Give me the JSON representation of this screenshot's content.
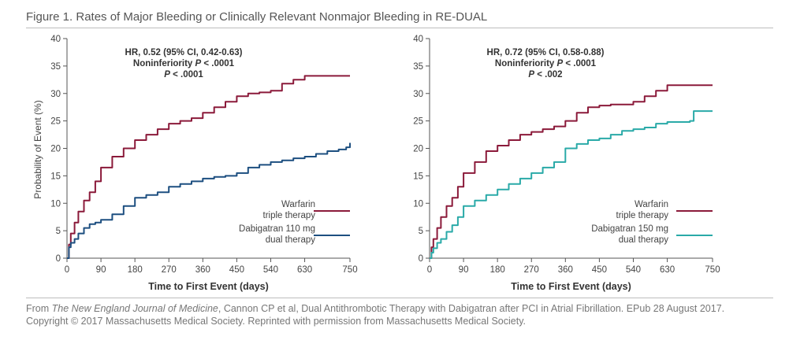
{
  "figure": {
    "title": "Figure 1. Rates of Major Bleeding or Clinically Relevant Nonmajor Bleeding in RE-DUAL",
    "credit_prefix": "From ",
    "credit_journal": "The New England Journal of Medicine",
    "credit_rest": ", Cannon CP et al, Dual Antithrombotic Therapy with Dabigatran after PCI in Atrial Fibrillation. EPub 28 August 2017.",
    "credit_line2": "Copyright © 2017 Massachusetts Medical Society. Reprinted with permission from Massachusetts Medical Society."
  },
  "colors": {
    "warfarin": "#8b1a3a",
    "dabigatran110": "#1d4f80",
    "dabigatran150": "#2aaaa8",
    "axis": "#555555"
  },
  "chart_data": [
    {
      "type": "line",
      "xlabel": "Time to First Event (days)",
      "ylabel": "Probability of Event (%)",
      "xlim": [
        0,
        750
      ],
      "ylim": [
        0,
        40
      ],
      "xticks": [
        0,
        90,
        180,
        270,
        360,
        450,
        540,
        630,
        750
      ],
      "yticks": [
        0,
        5,
        10,
        15,
        20,
        25,
        30,
        35,
        40
      ],
      "grid": false,
      "legend_position": "bottom-right",
      "annotation": {
        "line1": "HR, 0.52 (95% CI, 0.42-0.63)",
        "line2_prefix": "Noninferiority ",
        "line2_p": "P",
        "line2_suffix": " < .0001",
        "line3_p": "P",
        "line3_suffix": " < .0001"
      },
      "series": [
        {
          "name": "Warfarin",
          "name2": "triple therapy",
          "color": "#8b1a3a",
          "x": [
            0,
            5,
            10,
            20,
            30,
            45,
            60,
            75,
            90,
            120,
            150,
            180,
            210,
            240,
            270,
            300,
            330,
            360,
            390,
            420,
            450,
            480,
            510,
            540,
            570,
            600,
            630,
            660,
            690,
            720,
            750
          ],
          "y": [
            0,
            2.5,
            4.5,
            6.5,
            8.5,
            10.5,
            12,
            14,
            16.5,
            18.5,
            20,
            21.5,
            22.5,
            23.5,
            24.5,
            25,
            25.5,
            26.5,
            27.5,
            28.5,
            29.5,
            30,
            30.2,
            30.5,
            31.8,
            32.5,
            33.2,
            33.2,
            33.2,
            33.2,
            33.2
          ]
        },
        {
          "name": "Dabigatran 110 mg",
          "name2": "dual therapy",
          "color": "#1d4f80",
          "x": [
            0,
            5,
            10,
            20,
            30,
            45,
            60,
            75,
            90,
            120,
            150,
            180,
            210,
            240,
            270,
            300,
            330,
            360,
            390,
            420,
            450,
            480,
            510,
            540,
            570,
            600,
            630,
            660,
            690,
            720,
            740,
            750
          ],
          "y": [
            0,
            2,
            2.8,
            3.5,
            4.5,
            5.5,
            6.2,
            6.5,
            7,
            8,
            9.5,
            11,
            11.5,
            12,
            13,
            13.5,
            14,
            14.5,
            14.8,
            15,
            15.5,
            16.5,
            17,
            17.5,
            17.8,
            18.2,
            18.5,
            19,
            19.5,
            19.8,
            20.2,
            21
          ]
        }
      ]
    },
    {
      "type": "line",
      "xlabel": "Time to First Event (days)",
      "ylabel": "",
      "xlim": [
        0,
        750
      ],
      "ylim": [
        0,
        40
      ],
      "xticks": [
        0,
        90,
        180,
        270,
        360,
        450,
        540,
        630,
        750
      ],
      "yticks": [
        0,
        5,
        10,
        15,
        20,
        25,
        30,
        35,
        40
      ],
      "grid": false,
      "legend_position": "bottom-right",
      "annotation": {
        "line1": "HR, 0.72 (95% CI, 0.58-0.88)",
        "line2_prefix": "Noninferiority ",
        "line2_p": "P",
        "line2_suffix": " < .0001",
        "line3_p": "P",
        "line3_suffix": " < .002"
      },
      "series": [
        {
          "name": "Warfarin",
          "name2": "triple therapy",
          "color": "#8b1a3a",
          "x": [
            0,
            5,
            10,
            20,
            30,
            45,
            60,
            75,
            90,
            120,
            150,
            180,
            210,
            240,
            270,
            300,
            330,
            360,
            390,
            420,
            450,
            480,
            510,
            540,
            570,
            600,
            630,
            660,
            690,
            720,
            750
          ],
          "y": [
            0,
            2,
            3.5,
            5.5,
            7.5,
            9.5,
            11,
            13,
            15.5,
            17.5,
            19.5,
            20.5,
            21.5,
            22.5,
            23,
            23.5,
            24,
            25,
            26.5,
            27.5,
            27.8,
            28,
            28,
            28.5,
            29.5,
            30.5,
            31.5,
            31.5,
            31.5,
            31.5,
            31.5
          ]
        },
        {
          "name": "Dabigatran 150 mg",
          "name2": "dual therapy",
          "color": "#2aaaa8",
          "x": [
            0,
            5,
            10,
            20,
            30,
            45,
            60,
            75,
            90,
            120,
            150,
            180,
            210,
            240,
            270,
            300,
            330,
            360,
            390,
            420,
            450,
            480,
            510,
            540,
            570,
            600,
            630,
            660,
            690,
            700,
            750
          ],
          "y": [
            0,
            1,
            1.8,
            2.8,
            3.5,
            4.8,
            6,
            7.5,
            9.5,
            10.5,
            11.5,
            12.5,
            13.5,
            14.5,
            15.5,
            16.5,
            17.5,
            20,
            20.8,
            21.5,
            21.8,
            22.5,
            23.2,
            23.5,
            23.8,
            24.5,
            24.8,
            24.8,
            25,
            26.8,
            26.8
          ]
        }
      ]
    }
  ]
}
